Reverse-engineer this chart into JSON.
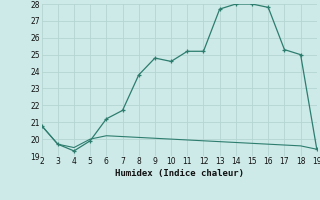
{
  "x": [
    2,
    3,
    4,
    5,
    6,
    7,
    8,
    9,
    10,
    11,
    12,
    13,
    14,
    15,
    16,
    17,
    18,
    19
  ],
  "y_main": [
    20.8,
    19.7,
    19.3,
    19.9,
    21.2,
    21.7,
    23.8,
    24.8,
    24.6,
    25.2,
    25.2,
    27.7,
    28.0,
    28.0,
    27.8,
    25.3,
    25.0,
    19.4
  ],
  "y_base": [
    20.8,
    19.7,
    19.5,
    20.0,
    20.2,
    20.15,
    20.1,
    20.05,
    20.0,
    19.95,
    19.9,
    19.85,
    19.8,
    19.75,
    19.7,
    19.65,
    19.6,
    19.4
  ],
  "line_color": "#2d7d6e",
  "bg_color": "#cdeae8",
  "grid_color": "#b5d5d2",
  "xlabel": "Humidex (Indice chaleur)",
  "xlim": [
    2,
    19
  ],
  "ylim": [
    19,
    28
  ],
  "xticks": [
    2,
    3,
    4,
    5,
    6,
    7,
    8,
    9,
    10,
    11,
    12,
    13,
    14,
    15,
    16,
    17,
    18,
    19
  ],
  "yticks": [
    19,
    20,
    21,
    22,
    23,
    24,
    25,
    26,
    27,
    28
  ]
}
